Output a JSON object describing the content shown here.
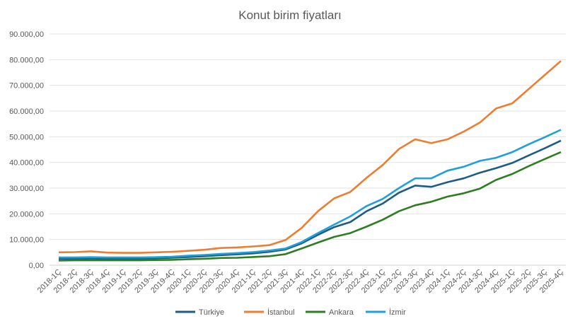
{
  "chart_data": {
    "type": "line",
    "title": "Konut birim fiyatları",
    "xlabel": "",
    "ylabel": "",
    "ylim": [
      0,
      90000
    ],
    "yticks": [
      "0,00",
      "10.000,00",
      "20.000,00",
      "30.000,00",
      "40.000,00",
      "50.000,00",
      "60.000,00",
      "70.000,00",
      "80.000,00",
      "90.000,00"
    ],
    "grid": true,
    "legend": "bottom",
    "categories": [
      "2018-1Ç",
      "2018-2Ç",
      "2018-3Ç",
      "2018-4Ç",
      "2019-1Ç",
      "2019-2Ç",
      "2019-3Ç",
      "2019-4Ç",
      "2020-1Ç",
      "2020-2Ç",
      "2020-3Ç",
      "2020-4Ç",
      "2021-1Ç",
      "2021-2Ç",
      "2021-3Ç",
      "2021-4Ç",
      "2022-1Ç",
      "2022-2Ç",
      "2022-3Ç",
      "2022-4Ç",
      "2023-1Ç",
      "2023-2Ç",
      "2023-3Ç",
      "2023-4Ç",
      "2024-1Ç",
      "2024-2Ç",
      "2024-3Ç",
      "2024-4Ç",
      "2025-1Ç",
      "2025-2Ç",
      "2025-3Ç",
      "2025-4Ç"
    ],
    "series": [
      {
        "name": "Türkiye",
        "color": "#1F5C84",
        "values": [
          2500,
          2500,
          2600,
          2500,
          2500,
          2500,
          2700,
          2900,
          3200,
          3500,
          3900,
          4200,
          4600,
          5200,
          6100,
          8500,
          11800,
          14800,
          16800,
          21000,
          24000,
          28200,
          31000,
          30500,
          32300,
          33800,
          36000,
          37800,
          39800,
          42700,
          45500,
          48500
        ]
      },
      {
        "name": "İstanbul",
        "color": "#ED7D31",
        "values": [
          5000,
          5100,
          5400,
          4900,
          4800,
          4800,
          5000,
          5200,
          5600,
          6000,
          6700,
          6900,
          7300,
          7800,
          9800,
          14500,
          21000,
          26000,
          28500,
          34000,
          39000,
          45200,
          49000,
          47500,
          49000,
          52000,
          55500,
          61000,
          63000,
          68500,
          74000,
          79500
        ]
      },
      {
        "name": "Ankara",
        "color": "#2E7D22",
        "values": [
          1800,
          1900,
          1900,
          1900,
          1900,
          1900,
          2000,
          2100,
          2300,
          2500,
          2800,
          2900,
          3200,
          3500,
          4300,
          6500,
          8800,
          11000,
          12500,
          15000,
          17700,
          21000,
          23300,
          24700,
          26700,
          28000,
          29800,
          33200,
          35500,
          38500,
          41300,
          44000
        ]
      },
      {
        "name": "İzmir",
        "color": "#1FA0D8",
        "values": [
          3000,
          3000,
          3100,
          3000,
          3000,
          3000,
          3100,
          3300,
          3700,
          4000,
          4400,
          4700,
          5100,
          5700,
          6500,
          9000,
          12500,
          15800,
          19000,
          23000,
          25800,
          30000,
          33800,
          33800,
          36800,
          38300,
          40600,
          41800,
          44000,
          47000,
          49800,
          52700
        ]
      }
    ]
  }
}
